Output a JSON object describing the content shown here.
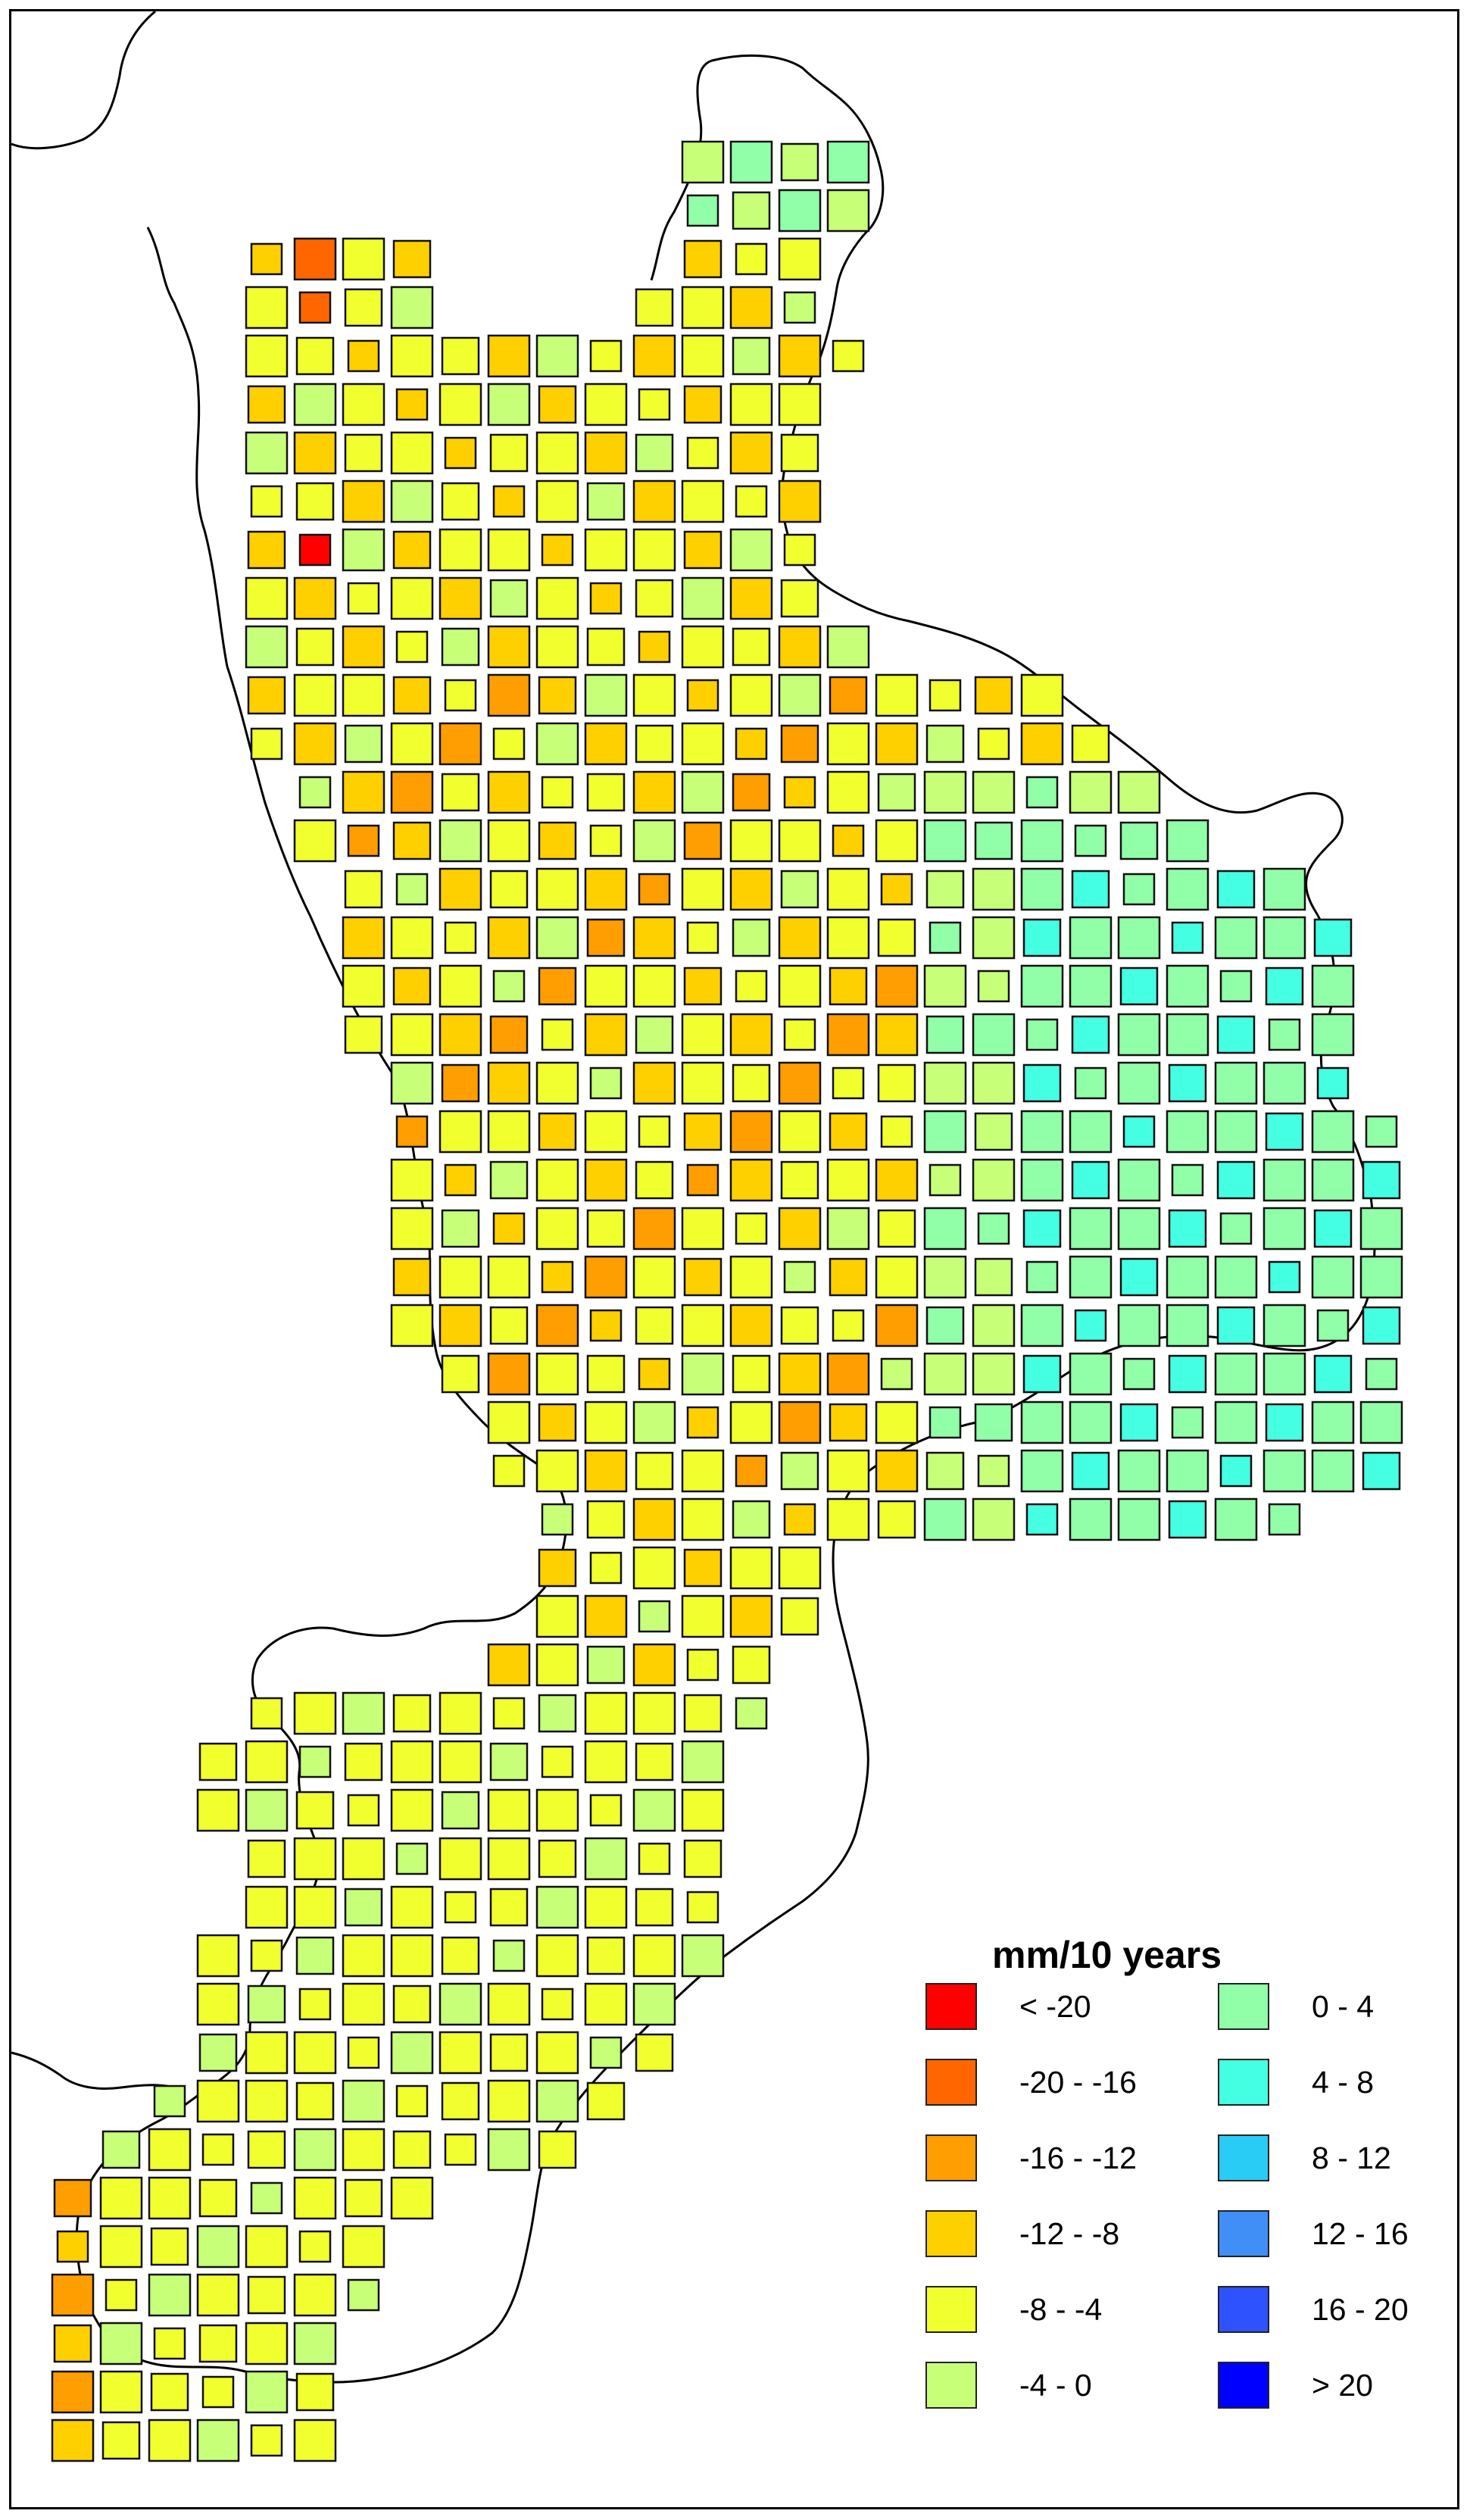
{
  "legend": {
    "title": "mm/10 years",
    "classes": [
      {
        "label": "< -20",
        "color": "#ff0000"
      },
      {
        "label": "-20 - -16",
        "color": "#ff6600"
      },
      {
        "label": "-16 - -12",
        "color": "#ff9e00"
      },
      {
        "label": "-12 - -8",
        "color": "#ffd000"
      },
      {
        "label": "-8 - -4",
        "color": "#f2ff2e"
      },
      {
        "label": "-4 - 0",
        "color": "#c8ff78"
      },
      {
        "label": "0 - 4",
        "color": "#90ffa8"
      },
      {
        "label": "4 - 8",
        "color": "#44ffe2"
      },
      {
        "label": "8 - 12",
        "color": "#29ccf4"
      },
      {
        "label": "12 - 16",
        "color": "#3f8ff6"
      },
      {
        "label": "16 - 20",
        "color": "#2f52ff"
      },
      {
        "label": "> 20",
        "color": "#0000ff"
      }
    ]
  },
  "colors": {
    "frame": "#000000",
    "coastline": "#000000",
    "cell_border": "#111111"
  }
}
